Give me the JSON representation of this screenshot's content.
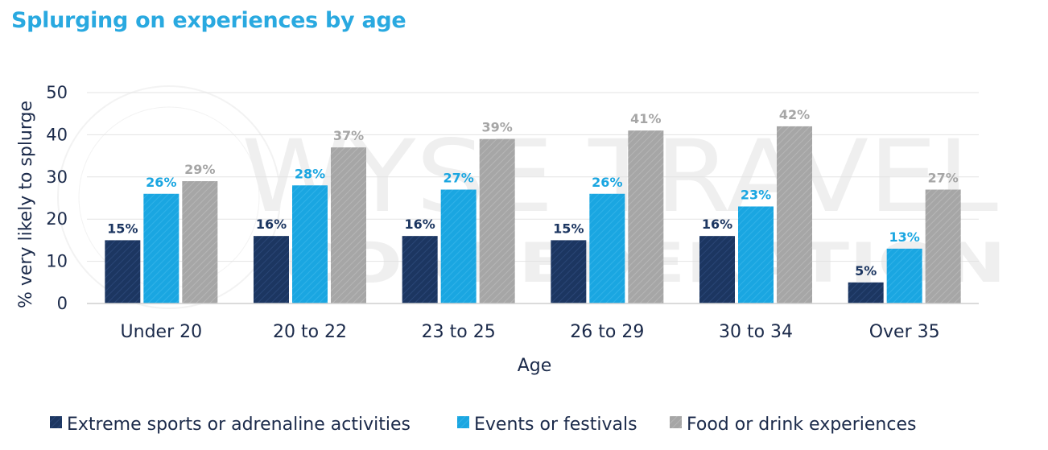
{
  "title": "Splurging on experiences by age",
  "watermark": {
    "line1": "WYSE TRAVEL",
    "line2": "CONFEDERATION"
  },
  "colors": {
    "title": "#29a9e0",
    "series1": "#1c3661",
    "series2": "#1aa6e1",
    "series3": "#a6a6a6",
    "text": "#1b2a4a",
    "grid": "#e3e3e3"
  },
  "chart_data": {
    "type": "bar",
    "title": "Splurging on experiences by age",
    "xlabel": "Age",
    "ylabel": "% very likely to splurge",
    "ylim": [
      0,
      50
    ],
    "yticks": [
      0,
      10,
      20,
      30,
      40,
      50
    ],
    "grid": true,
    "legend_position": "bottom",
    "categories": [
      "Under 20",
      "20 to 22",
      "23 to 25",
      "26 to 29",
      "30 to 34",
      "Over 35"
    ],
    "series": [
      {
        "name": "Extreme sports or adrenaline activities",
        "values": [
          15,
          16,
          16,
          15,
          16,
          5
        ],
        "labels": [
          "15%",
          "16%",
          "16%",
          "15%",
          "16%",
          "5%"
        ],
        "color": "#1c3661"
      },
      {
        "name": "Events or festivals",
        "values": [
          26,
          28,
          27,
          26,
          23,
          13
        ],
        "labels": [
          "26%",
          "28%",
          "27%",
          "26%",
          "23%",
          "13%"
        ],
        "color": "#1aa6e1"
      },
      {
        "name": "Food or drink experiences",
        "values": [
          29,
          37,
          39,
          41,
          42,
          27
        ],
        "labels": [
          "29%",
          "37%",
          "39%",
          "41%",
          "42%",
          "27%"
        ],
        "color": "#a6a6a6"
      }
    ]
  }
}
